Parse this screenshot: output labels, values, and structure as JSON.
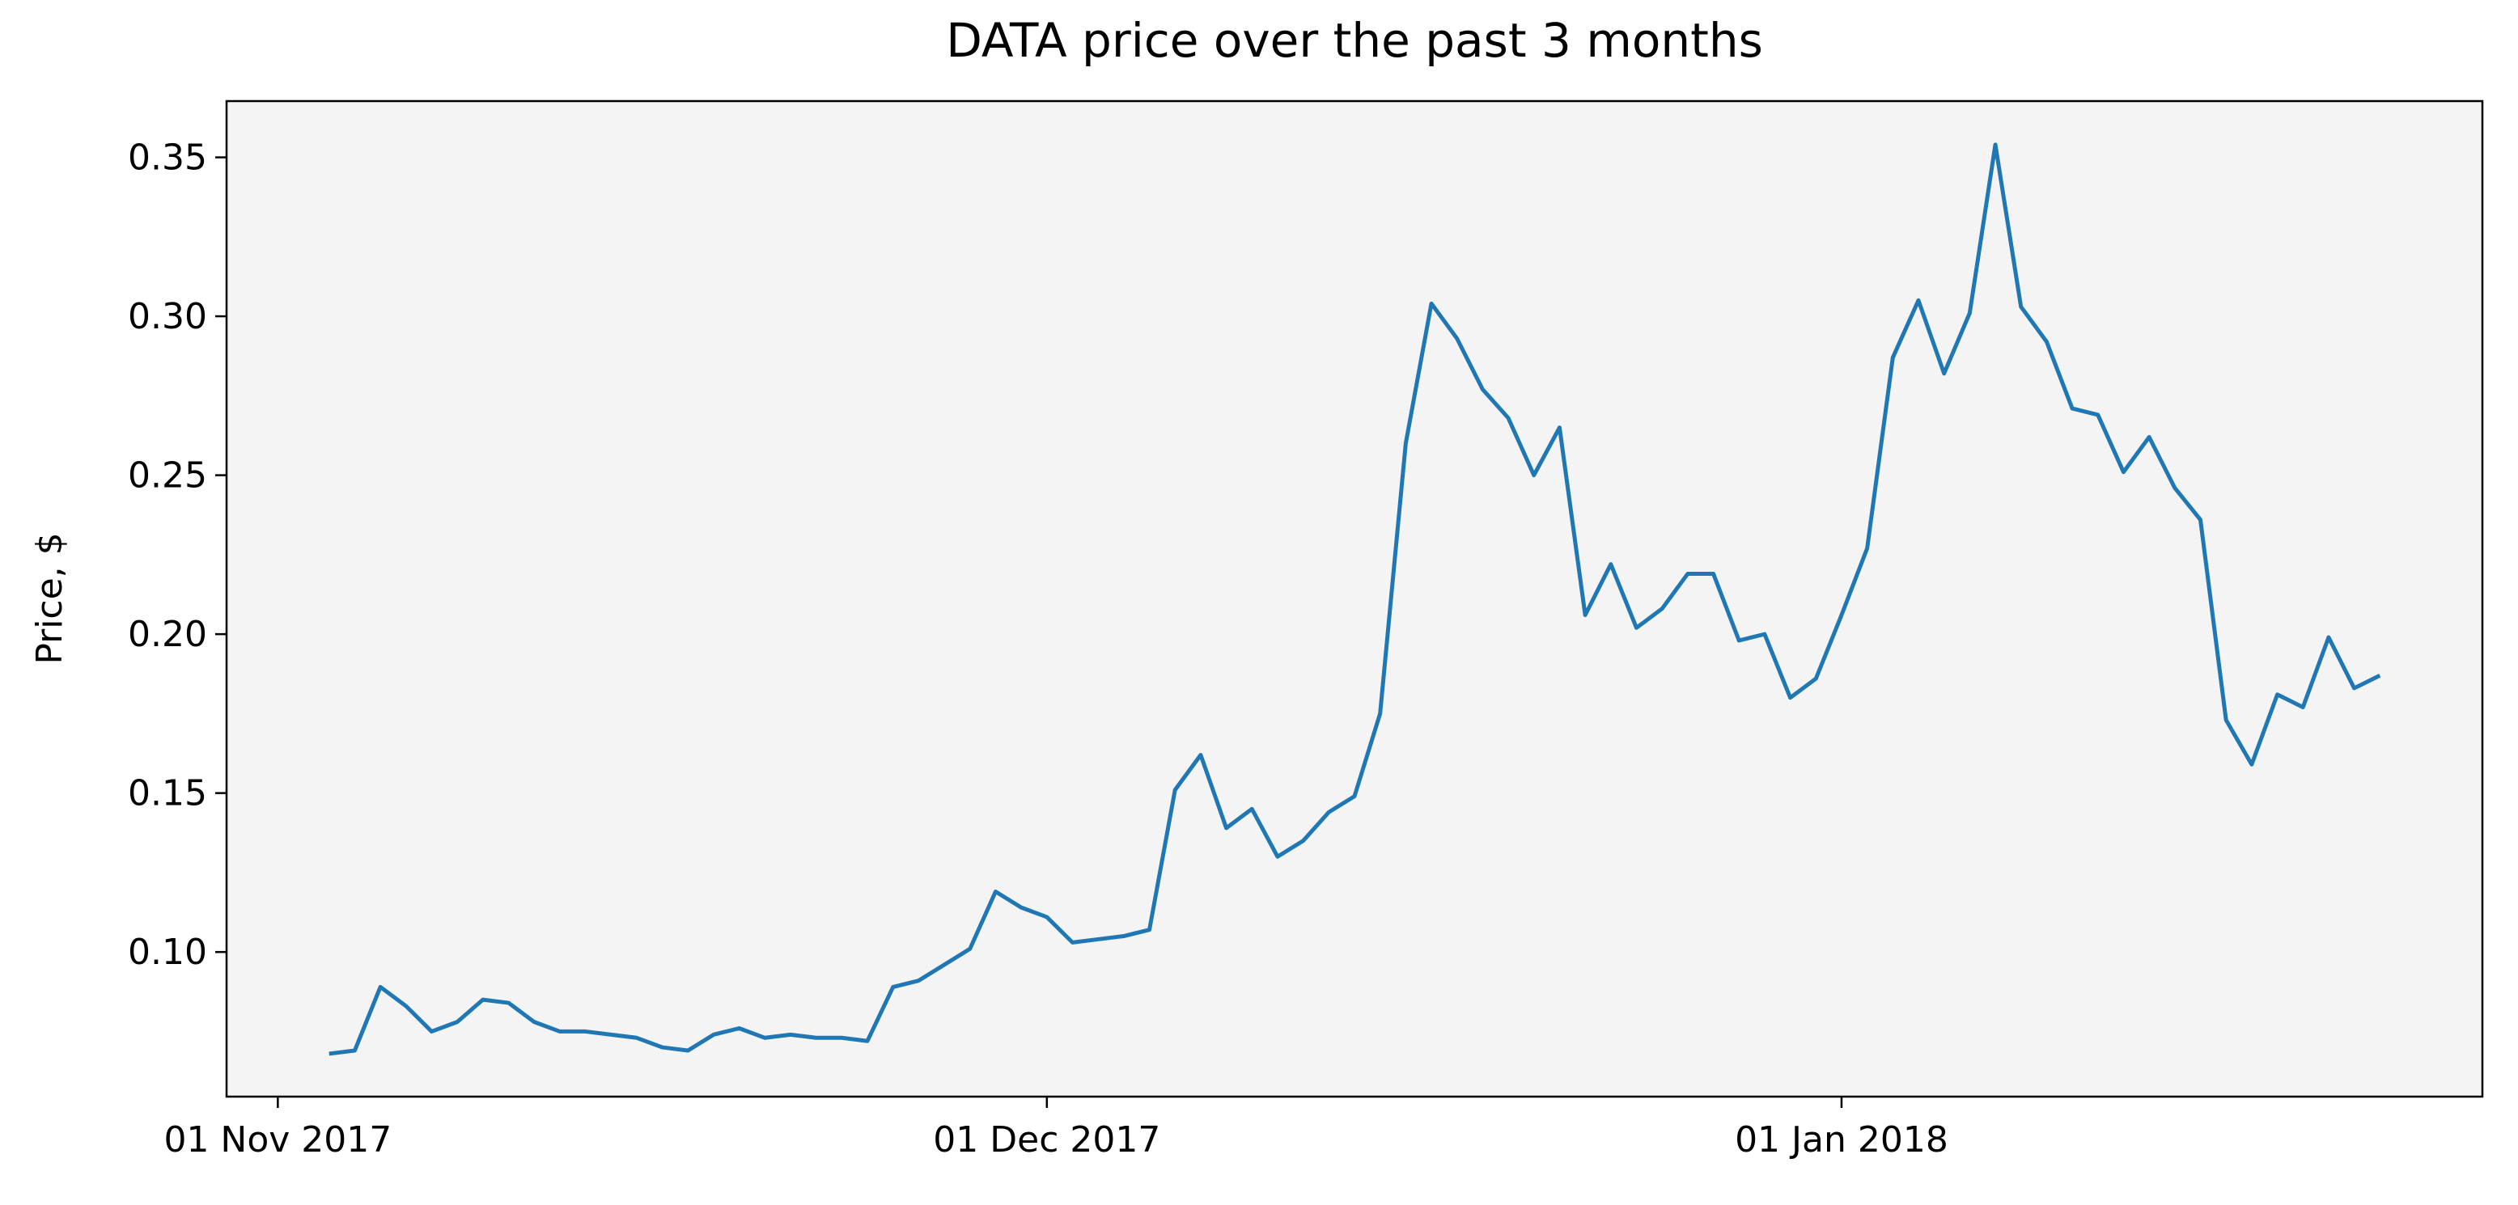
{
  "chart_data": {
    "type": "line",
    "title": "DATA price over the past 3 months",
    "y_label": "Price, $",
    "color": "#1f77b4",
    "background": "#f4f4f4",
    "x": [
      "2017-11-03",
      "2017-11-04",
      "2017-11-05",
      "2017-11-06",
      "2017-11-07",
      "2017-11-08",
      "2017-11-09",
      "2017-11-10",
      "2017-11-11",
      "2017-11-12",
      "2017-11-13",
      "2017-11-14",
      "2017-11-15",
      "2017-11-16",
      "2017-11-17",
      "2017-11-18",
      "2017-11-19",
      "2017-11-20",
      "2017-11-21",
      "2017-11-22",
      "2017-11-23",
      "2017-11-24",
      "2017-11-25",
      "2017-11-26",
      "2017-11-27",
      "2017-11-28",
      "2017-11-29",
      "2017-11-30",
      "2017-12-01",
      "2017-12-02",
      "2017-12-03",
      "2017-12-04",
      "2017-12-05",
      "2017-12-06",
      "2017-12-07",
      "2017-12-08",
      "2017-12-09",
      "2017-12-10",
      "2017-12-11",
      "2017-12-12",
      "2017-12-13",
      "2017-12-14",
      "2017-12-15",
      "2017-12-16",
      "2017-12-17",
      "2017-12-18",
      "2017-12-19",
      "2017-12-20",
      "2017-12-21",
      "2017-12-22",
      "2017-12-23",
      "2017-12-24",
      "2017-12-25",
      "2017-12-26",
      "2017-12-27",
      "2017-12-28",
      "2017-12-29",
      "2017-12-30",
      "2017-12-31",
      "2018-01-01",
      "2018-01-02",
      "2018-01-03",
      "2018-01-04",
      "2018-01-05",
      "2018-01-06",
      "2018-01-07",
      "2018-01-08",
      "2018-01-09",
      "2018-01-10",
      "2018-01-11",
      "2018-01-12",
      "2018-01-13",
      "2018-01-14",
      "2018-01-15",
      "2018-01-16",
      "2018-01-17",
      "2018-01-18",
      "2018-01-19",
      "2018-01-20",
      "2018-01-21",
      "2018-01-22"
    ],
    "values": [
      0.068,
      0.069,
      0.089,
      0.083,
      0.075,
      0.078,
      0.085,
      0.084,
      0.078,
      0.075,
      0.075,
      0.074,
      0.073,
      0.07,
      0.069,
      0.074,
      0.076,
      0.073,
      0.074,
      0.073,
      0.073,
      0.072,
      0.089,
      0.091,
      0.096,
      0.101,
      0.119,
      0.114,
      0.111,
      0.103,
      0.104,
      0.105,
      0.107,
      0.151,
      0.162,
      0.139,
      0.145,
      0.13,
      0.135,
      0.144,
      0.149,
      0.175,
      0.26,
      0.304,
      0.293,
      0.277,
      0.268,
      0.25,
      0.265,
      0.206,
      0.222,
      0.202,
      0.208,
      0.219,
      0.219,
      0.198,
      0.2,
      0.18,
      0.186,
      0.206,
      0.227,
      0.287,
      0.305,
      0.282,
      0.301,
      0.354,
      0.303,
      0.292,
      0.271,
      0.269,
      0.251,
      0.262,
      0.246,
      0.236,
      0.173,
      0.159,
      0.181,
      0.177,
      0.199,
      0.183,
      0.187
    ],
    "xlim": [
      "2017-10-30",
      "2018-01-26"
    ],
    "xticks": [
      {
        "value": "2017-11-01",
        "label": "01 Nov 2017"
      },
      {
        "value": "2017-12-01",
        "label": "01 Dec 2017"
      },
      {
        "value": "2018-01-01",
        "label": "01 Jan 2018"
      }
    ],
    "ylim": [
      0.0545,
      0.3677
    ],
    "yticks": [
      {
        "value": 0.1,
        "label": "0.10"
      },
      0.15,
      {
        "value": 0.2,
        "label": "0.20"
      },
      0.25,
      {
        "value": 0.3,
        "label": "0.30"
      },
      0.35
    ],
    "grid": false
  }
}
